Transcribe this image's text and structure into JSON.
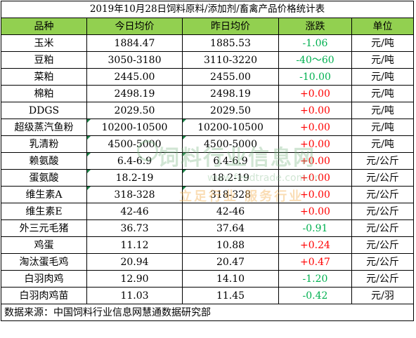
{
  "title": "2019年10月28日饲料原料/添加剂/畜禽产品价格统计表",
  "headers": [
    "品种",
    "今日均价",
    "昨日均价",
    "涨跌",
    "单位"
  ],
  "rows": [
    {
      "name": "玉米",
      "today": "1884.47",
      "yesterday": "1885.53",
      "change": "-1.06",
      "unit": "元/吨",
      "dir": "down"
    },
    {
      "name": "豆粕",
      "today": "3050-3180",
      "yesterday": "3110-3220",
      "change": "-40～60",
      "unit": "元/吨",
      "dir": "down"
    },
    {
      "name": "菜粕",
      "today": "2445.00",
      "yesterday": "2455.00",
      "change": "-10.00",
      "unit": "元/吨",
      "dir": "down"
    },
    {
      "name": "棉粕",
      "today": "2498.19",
      "yesterday": "2498.19",
      "change": "+0.00",
      "unit": "元/吨",
      "dir": "up"
    },
    {
      "name": "DDGS",
      "today": "2029.50",
      "yesterday": "2029.50",
      "change": "+0.00",
      "unit": "元/吨",
      "dir": "up"
    },
    {
      "name": "超级蒸汽鱼粉",
      "today": "10200-10500",
      "yesterday": "10200-10500",
      "change": "+0.00",
      "unit": "元/吨",
      "dir": "up"
    },
    {
      "name": "乳清粉",
      "today": "4500-5000",
      "yesterday": "4500-5000",
      "change": "+0.00",
      "unit": "元/吨",
      "dir": "up"
    },
    {
      "name": "赖氨酸",
      "today": "6.4-6.9",
      "yesterday": "6.4-6.9",
      "change": "+0.00",
      "unit": "元/公斤",
      "dir": "up"
    },
    {
      "name": "蛋氨酸",
      "today": "18.2-19",
      "yesterday": "18.2-19",
      "change": "+0.00",
      "unit": "元/公斤",
      "dir": "up"
    },
    {
      "name": "维生素A",
      "today": "318-328",
      "yesterday": "318-328",
      "change": "+0.00",
      "unit": "元/公斤",
      "dir": "up"
    },
    {
      "name": "维生素E",
      "today": "42-46",
      "yesterday": "42-46",
      "change": "+0.00",
      "unit": "元/公斤",
      "dir": "up"
    },
    {
      "name": "外三元毛猪",
      "today": "36.73",
      "yesterday": "37.64",
      "change": "-0.91",
      "unit": "元/公斤",
      "dir": "down"
    },
    {
      "name": "鸡蛋",
      "today": "11.12",
      "yesterday": "10.88",
      "change": "+0.24",
      "unit": "元/公斤",
      "dir": "up"
    },
    {
      "name": "淘汰蛋毛鸡",
      "today": "20.94",
      "yesterday": "20.47",
      "change": "+0.47",
      "unit": "元/公斤",
      "dir": "up"
    },
    {
      "name": "白羽肉鸡",
      "today": "12.90",
      "yesterday": "14.10",
      "change": "-1.20",
      "unit": "元/公斤",
      "dir": "down"
    },
    {
      "name": "白羽肉鸡苗",
      "today": "11.03",
      "yesterday": "11.45",
      "change": "-0.42",
      "unit": "元/羽",
      "dir": "down"
    }
  ],
  "source": "数据来源：中国饲料行业信息网慧通数据研究部",
  "watermark": {
    "main": "饲料行业信息网",
    "url": "www.feedtrade.com.cn",
    "slogan": "立足行业 服务行业"
  },
  "colors": {
    "header_bg": "#92d050",
    "down": "#00b050",
    "up": "#ff0000"
  }
}
